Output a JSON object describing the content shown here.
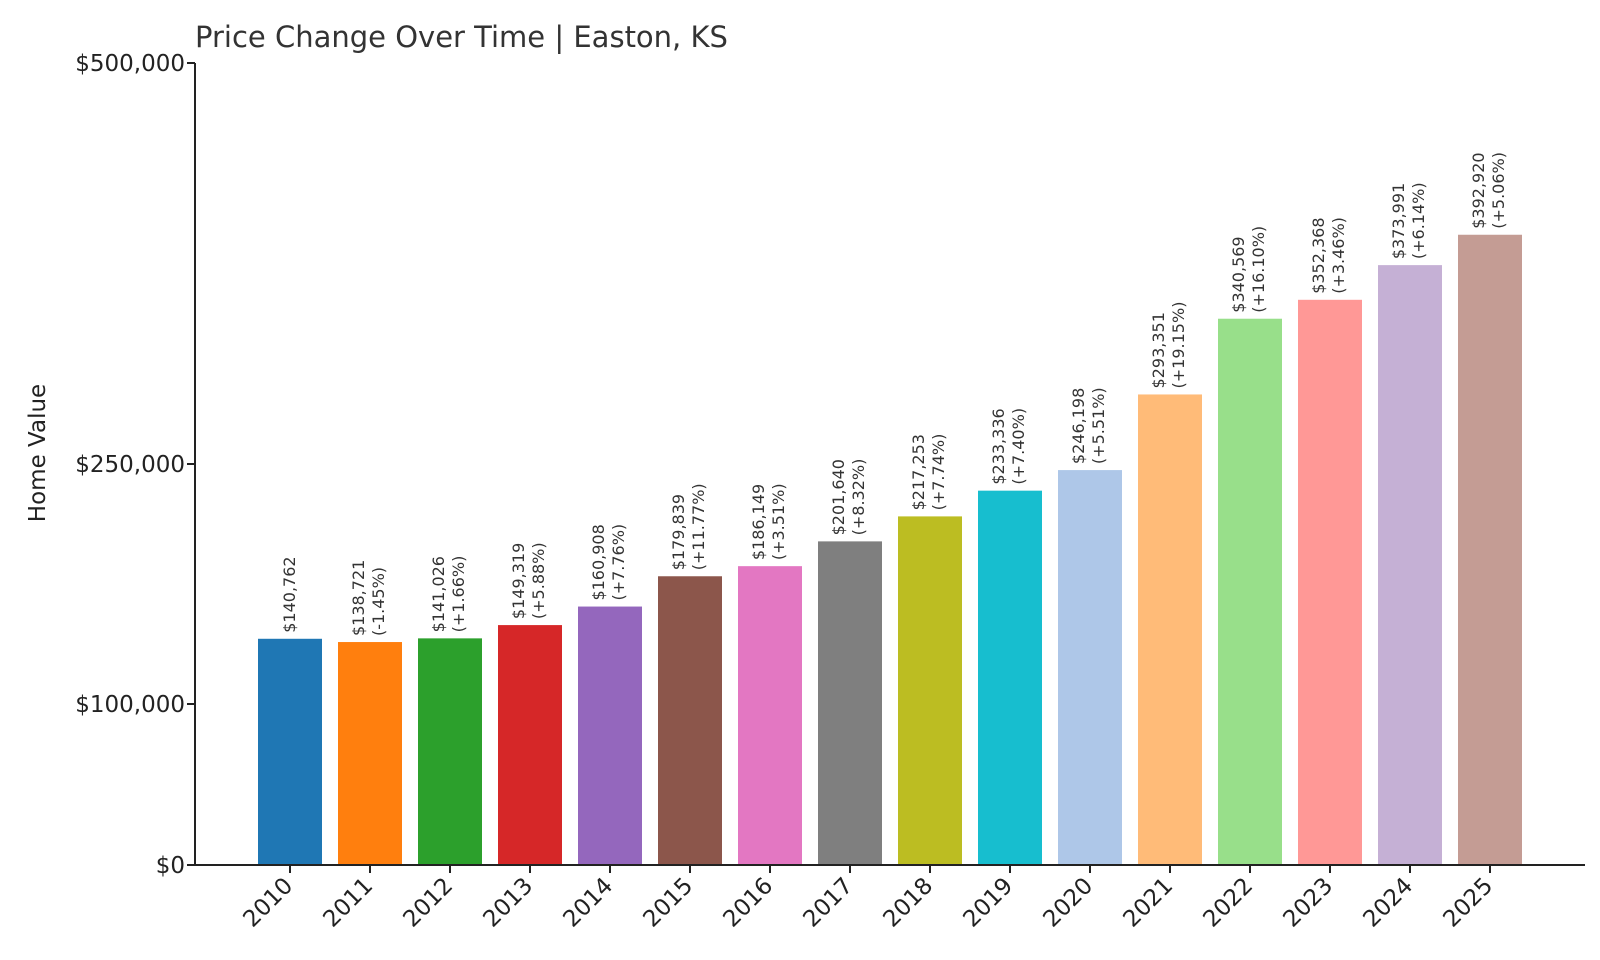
{
  "chart_data": {
    "type": "bar",
    "title": "Price Change Over Time | Easton, KS",
    "xlabel": "",
    "ylabel": "Home Value",
    "ylim": [
      0,
      500000
    ],
    "yticks": [
      {
        "value": 0,
        "label": "$0"
      },
      {
        "value": 100000,
        "label": "$100,000"
      },
      {
        "value": 250000,
        "label": "$250,000"
      },
      {
        "value": 500000,
        "label": "$500,000"
      }
    ],
    "categories": [
      "2010",
      "2011",
      "2012",
      "2013",
      "2014",
      "2015",
      "2016",
      "2017",
      "2018",
      "2019",
      "2020",
      "2021",
      "2022",
      "2023",
      "2024",
      "2025"
    ],
    "values": [
      140762,
      138721,
      141026,
      149319,
      160908,
      179839,
      186149,
      201640,
      217253,
      233336,
      246198,
      293351,
      340569,
      352368,
      373991,
      392920
    ],
    "value_labels": [
      "$140,762",
      "$138,721",
      "$141,026",
      "$149,319",
      "$160,908",
      "$179,839",
      "$186,149",
      "$201,640",
      "$217,253",
      "$233,336",
      "$246,198",
      "$293,351",
      "$340,569",
      "$352,368",
      "$373,991",
      "$392,920"
    ],
    "change_labels": [
      "",
      "(-1.45%)",
      "(+1.66%)",
      "(+5.88%)",
      "(+7.76%)",
      "(+11.77%)",
      "(+3.51%)",
      "(+8.32%)",
      "(+7.74%)",
      "(+7.40%)",
      "(+5.51%)",
      "(+19.15%)",
      "(+16.10%)",
      "(+3.46%)",
      "(+6.14%)",
      "(+5.06%)"
    ],
    "colors": [
      "#1f77b4",
      "#ff7f0e",
      "#2ca02c",
      "#d62728",
      "#9467bd",
      "#8c564b",
      "#e377c2",
      "#7f7f7f",
      "#bcbd22",
      "#17becf",
      "#aec7e8",
      "#ffbb78",
      "#98df8a",
      "#ff9896",
      "#c5b0d5",
      "#c49c94"
    ],
    "grid": false,
    "legend": "none"
  }
}
